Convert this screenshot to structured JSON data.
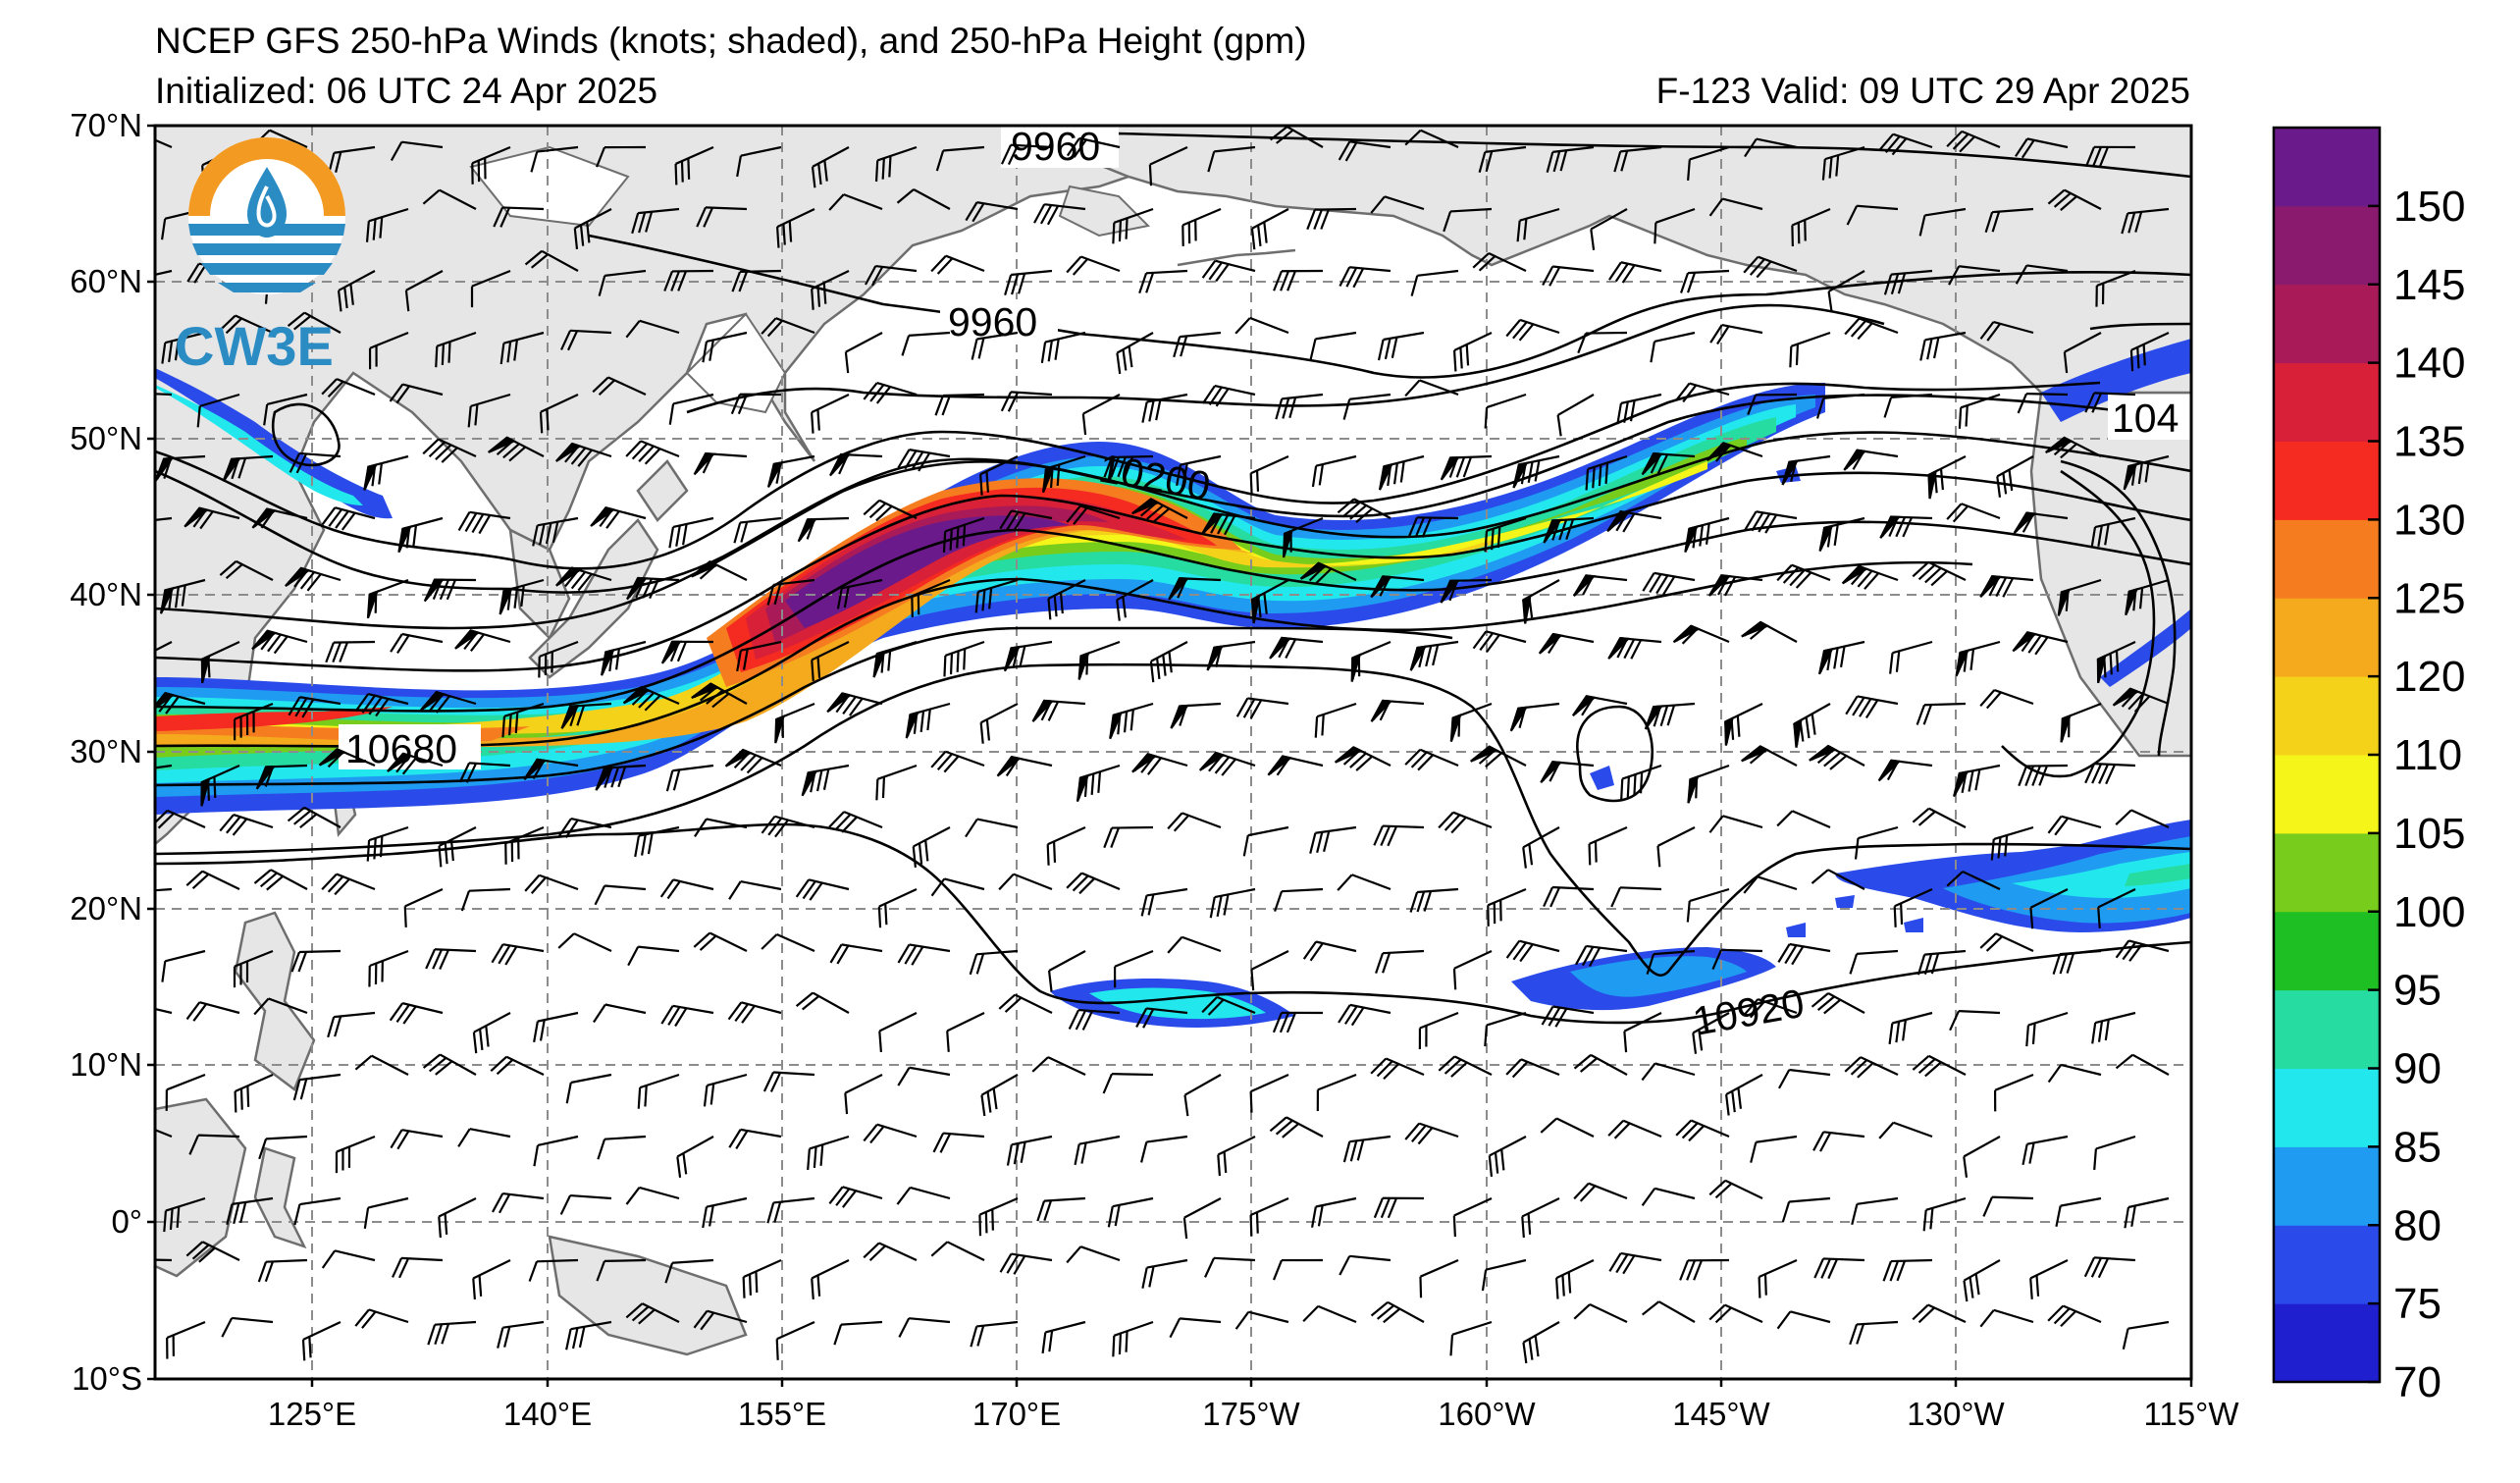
{
  "header": {
    "title": "NCEP GFS 250-hPa Winds (knots; shaded), and 250-hPa Height (gpm)",
    "initialized": "Initialized: 06 UTC 24 Apr 2025",
    "valid": "F-123  Valid: 09 UTC 29 Apr 2025"
  },
  "logo": {
    "text": "CW3E",
    "colors": {
      "orange": "#f39a22",
      "blue": "#2b8cc4"
    }
  },
  "map": {
    "lat_labels": [
      "70°N",
      "60°N",
      "50°N",
      "40°N",
      "30°N",
      "20°N",
      "10°N",
      "0°",
      "10°S"
    ],
    "lon_labels": [
      "125°E",
      "140°E",
      "155°E",
      "170°E",
      "175°W",
      "160°W",
      "145°W",
      "130°W",
      "115°W"
    ],
    "extent": {
      "lon_west": "110°E",
      "lon_east": "115°W",
      "lat_south": "10°S",
      "lat_north": "70°N"
    },
    "contour_labels": [
      "9960",
      "9960",
      "10200",
      "10680",
      "10920",
      "104"
    ],
    "land_color": "#e6e6e6",
    "grid": "dashed gray"
  },
  "colorbar": {
    "tick_labels": [
      "150",
      "145",
      "140",
      "135",
      "130",
      "125",
      "120",
      "110",
      "105",
      "100",
      "95",
      "90",
      "85",
      "80",
      "75",
      "70"
    ],
    "colors": [
      "#1f1fcf",
      "#2a4bea",
      "#1f9bf2",
      "#22e8ee",
      "#26dca1",
      "#1ebf22",
      "#77cc1c",
      "#f5f51a",
      "#f5d21a",
      "#f5aa1e",
      "#f57d20",
      "#f52a20",
      "#d82038",
      "#a81a58",
      "#8a1a6e",
      "#6a1a8a"
    ]
  }
}
